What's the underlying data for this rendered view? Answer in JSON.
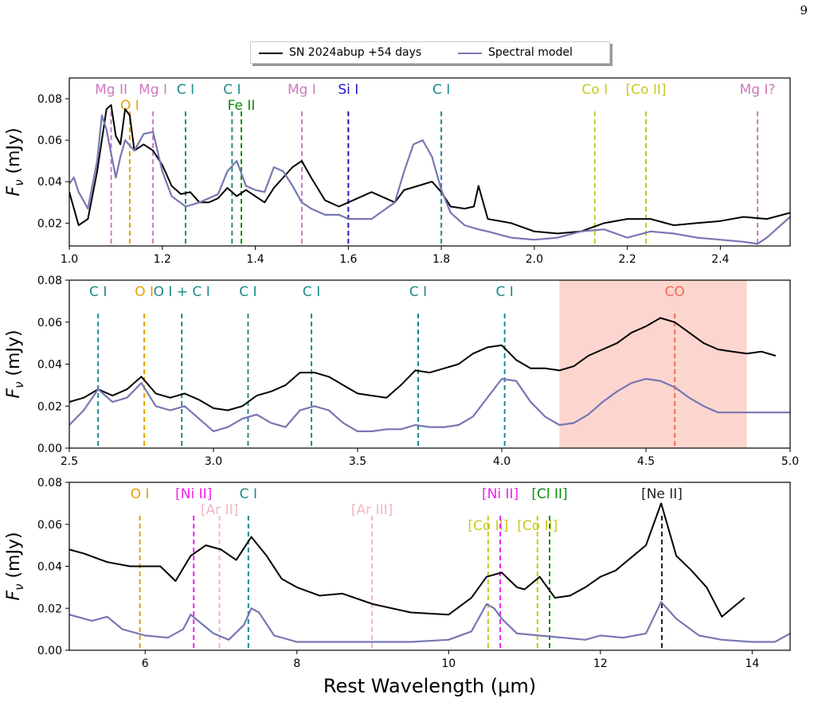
{
  "page_number": "9",
  "legend": {
    "observed_label": "SN 2024abup +54 days",
    "model_label": "Spectral model",
    "observed_color": "#000000",
    "model_color": "#7777b3"
  },
  "chart_data": [
    {
      "type": "line",
      "panel": "top",
      "ylabel": "F_ν (mJy)",
      "xlabel": "",
      "xlim": [
        1.0,
        2.55
      ],
      "ylim": [
        0.009,
        0.09
      ],
      "xticks": [
        1.0,
        1.2,
        1.4,
        1.6,
        1.8,
        2.0,
        2.2,
        2.4
      ],
      "xtick_labels": [
        "1.0",
        "1.2",
        "1.4",
        "1.6",
        "1.8",
        "2.0",
        "2.2",
        "2.4"
      ],
      "yticks": [
        0.02,
        0.04,
        0.06,
        0.08
      ],
      "ytick_labels": [
        "0.02",
        "0.04",
        "0.06",
        "0.08"
      ],
      "series": [
        {
          "name": "SN 2024abup +54 days",
          "color": "#000000",
          "x": [
            1.0,
            1.02,
            1.04,
            1.06,
            1.08,
            1.09,
            1.1,
            1.11,
            1.12,
            1.13,
            1.14,
            1.16,
            1.18,
            1.2,
            1.22,
            1.24,
            1.26,
            1.28,
            1.3,
            1.32,
            1.34,
            1.36,
            1.38,
            1.4,
            1.42,
            1.44,
            1.46,
            1.48,
            1.5,
            1.52,
            1.55,
            1.58,
            1.6,
            1.62,
            1.65,
            1.68,
            1.7,
            1.72,
            1.75,
            1.78,
            1.8,
            1.82,
            1.85,
            1.87,
            1.88,
            1.9,
            1.95,
            2.0,
            2.05,
            2.1,
            2.15,
            2.2,
            2.25,
            2.3,
            2.35,
            2.4,
            2.45,
            2.5,
            2.55
          ],
          "y": [
            0.035,
            0.019,
            0.022,
            0.045,
            0.075,
            0.077,
            0.062,
            0.058,
            0.075,
            0.072,
            0.055,
            0.058,
            0.055,
            0.048,
            0.038,
            0.034,
            0.035,
            0.03,
            0.03,
            0.032,
            0.037,
            0.033,
            0.036,
            0.033,
            0.03,
            0.037,
            0.042,
            0.047,
            0.05,
            0.042,
            0.031,
            0.028,
            0.03,
            0.032,
            0.035,
            0.032,
            0.03,
            0.036,
            0.038,
            0.04,
            0.035,
            0.028,
            0.027,
            0.028,
            0.038,
            0.022,
            0.02,
            0.016,
            0.015,
            0.016,
            0.02,
            0.022,
            0.022,
            0.019,
            0.02,
            0.021,
            0.023,
            0.022,
            0.025
          ]
        },
        {
          "name": "Spectral model",
          "color": "#7777b3",
          "x": [
            1.0,
            1.01,
            1.02,
            1.04,
            1.06,
            1.07,
            1.08,
            1.1,
            1.11,
            1.12,
            1.14,
            1.16,
            1.18,
            1.2,
            1.22,
            1.25,
            1.28,
            1.3,
            1.32,
            1.34,
            1.36,
            1.38,
            1.4,
            1.42,
            1.44,
            1.46,
            1.48,
            1.5,
            1.52,
            1.55,
            1.58,
            1.6,
            1.65,
            1.7,
            1.72,
            1.74,
            1.76,
            1.78,
            1.8,
            1.82,
            1.85,
            1.88,
            1.9,
            1.95,
            2.0,
            2.05,
            2.1,
            2.15,
            2.2,
            2.25,
            2.3,
            2.35,
            2.4,
            2.45,
            2.48,
            2.5,
            2.55
          ],
          "y": [
            0.039,
            0.042,
            0.035,
            0.027,
            0.05,
            0.072,
            0.065,
            0.042,
            0.052,
            0.06,
            0.055,
            0.063,
            0.064,
            0.045,
            0.033,
            0.028,
            0.03,
            0.032,
            0.034,
            0.045,
            0.05,
            0.038,
            0.036,
            0.035,
            0.047,
            0.045,
            0.038,
            0.03,
            0.027,
            0.024,
            0.024,
            0.022,
            0.022,
            0.03,
            0.045,
            0.058,
            0.06,
            0.052,
            0.036,
            0.025,
            0.019,
            0.017,
            0.016,
            0.013,
            0.012,
            0.013,
            0.016,
            0.017,
            0.013,
            0.016,
            0.015,
            0.013,
            0.012,
            0.011,
            0.01,
            0.013,
            0.023
          ]
        }
      ],
      "lines": [
        {
          "x": 1.09,
          "label": "Mg II",
          "color": "#cc79c0",
          "row": 1
        },
        {
          "x": 1.13,
          "label": "O I",
          "color": "#e69f00",
          "row": 2
        },
        {
          "x": 1.18,
          "label": "Mg I",
          "color": "#cc79c0",
          "row": 1
        },
        {
          "x": 1.25,
          "label": "C I",
          "color": "#1b8a8a",
          "row": 1
        },
        {
          "x": 1.35,
          "label": "C I",
          "color": "#1b8a8a",
          "row": 1
        },
        {
          "x": 1.37,
          "label": "Fe II",
          "color": "#0b8a0b",
          "row": 2
        },
        {
          "x": 1.5,
          "label": "Mg I",
          "color": "#cc79c0",
          "row": 1
        },
        {
          "x": 1.6,
          "label": "Si I",
          "color": "#1a1acc",
          "row": 1
        },
        {
          "x": 1.8,
          "label": "C I",
          "color": "#1b8a8a",
          "row": 1
        },
        {
          "x": 2.13,
          "label": "Co I",
          "color": "#c8c81e",
          "row": 1
        },
        {
          "x": 2.24,
          "label": "[Co II]",
          "color": "#c8c81e",
          "row": 1
        },
        {
          "x": 2.48,
          "label": "Mg I?",
          "color": "#cc79c0",
          "row": 1
        }
      ]
    },
    {
      "type": "line",
      "panel": "middle",
      "ylabel": "F_ν (mJy)",
      "xlabel": "",
      "xlim": [
        2.5,
        5.0
      ],
      "ylim": [
        0.0,
        0.08
      ],
      "xticks": [
        2.5,
        3.0,
        3.5,
        4.0,
        4.5,
        5.0
      ],
      "xtick_labels": [
        "2.5",
        "3.0",
        "3.5",
        "4.0",
        "4.5",
        "5.0"
      ],
      "yticks": [
        0.0,
        0.02,
        0.04,
        0.06,
        0.08
      ],
      "ytick_labels": [
        "0.00",
        "0.02",
        "0.04",
        "0.06",
        "0.08"
      ],
      "shaded_region": {
        "x0": 4.2,
        "x1": 4.85,
        "color": "#fdd5cf"
      },
      "series": [
        {
          "name": "SN 2024abup +54 days",
          "color": "#000000",
          "x": [
            2.5,
            2.55,
            2.6,
            2.65,
            2.7,
            2.75,
            2.8,
            2.85,
            2.9,
            2.95,
            3.0,
            3.05,
            3.1,
            3.15,
            3.2,
            3.25,
            3.3,
            3.35,
            3.4,
            3.45,
            3.5,
            3.55,
            3.6,
            3.65,
            3.7,
            3.75,
            3.8,
            3.85,
            3.9,
            3.95,
            4.0,
            4.05,
            4.1,
            4.15,
            4.2,
            4.25,
            4.3,
            4.35,
            4.4,
            4.45,
            4.5,
            4.55,
            4.6,
            4.65,
            4.7,
            4.75,
            4.8,
            4.85,
            4.9,
            4.95
          ],
          "y": [
            0.022,
            0.024,
            0.028,
            0.025,
            0.028,
            0.034,
            0.026,
            0.024,
            0.026,
            0.023,
            0.019,
            0.018,
            0.02,
            0.025,
            0.027,
            0.03,
            0.036,
            0.036,
            0.034,
            0.03,
            0.026,
            0.025,
            0.024,
            0.03,
            0.037,
            0.036,
            0.038,
            0.04,
            0.045,
            0.048,
            0.049,
            0.042,
            0.038,
            0.038,
            0.037,
            0.039,
            0.044,
            0.047,
            0.05,
            0.055,
            0.058,
            0.062,
            0.06,
            0.055,
            0.05,
            0.047,
            0.046,
            0.045,
            0.046,
            0.044
          ]
        },
        {
          "name": "Spectral model",
          "color": "#7777b3",
          "x": [
            2.5,
            2.55,
            2.6,
            2.65,
            2.7,
            2.75,
            2.8,
            2.85,
            2.9,
            2.95,
            3.0,
            3.05,
            3.1,
            3.15,
            3.2,
            3.25,
            3.3,
            3.35,
            3.4,
            3.45,
            3.5,
            3.55,
            3.6,
            3.65,
            3.7,
            3.75,
            3.8,
            3.85,
            3.9,
            3.95,
            4.0,
            4.05,
            4.1,
            4.15,
            4.2,
            4.25,
            4.3,
            4.35,
            4.4,
            4.45,
            4.5,
            4.55,
            4.6,
            4.65,
            4.7,
            4.75,
            4.8,
            4.85,
            4.9,
            4.95,
            5.0
          ],
          "y": [
            0.011,
            0.018,
            0.028,
            0.022,
            0.024,
            0.031,
            0.02,
            0.018,
            0.02,
            0.014,
            0.008,
            0.01,
            0.014,
            0.016,
            0.012,
            0.01,
            0.018,
            0.02,
            0.018,
            0.012,
            0.008,
            0.008,
            0.009,
            0.009,
            0.011,
            0.01,
            0.01,
            0.011,
            0.015,
            0.024,
            0.033,
            0.032,
            0.022,
            0.015,
            0.011,
            0.012,
            0.016,
            0.022,
            0.027,
            0.031,
            0.033,
            0.032,
            0.029,
            0.024,
            0.02,
            0.017,
            0.017,
            0.017,
            0.017,
            0.017,
            0.017
          ]
        }
      ],
      "lines": [
        {
          "x": 2.6,
          "label": "C I",
          "color": "#1b8a8a",
          "row": 1
        },
        {
          "x": 2.76,
          "label": "O I",
          "color": "#e69f00",
          "row": 1
        },
        {
          "x": 2.89,
          "label": "O I + C I",
          "color": "#1b8a8a",
          "row": 1
        },
        {
          "x": 3.12,
          "label": "C I",
          "color": "#1b8a8a",
          "row": 1
        },
        {
          "x": 3.34,
          "label": "C I",
          "color": "#1b8a8a",
          "row": 1
        },
        {
          "x": 3.71,
          "label": "C I",
          "color": "#1b8a8a",
          "row": 1
        },
        {
          "x": 4.01,
          "label": "C I",
          "color": "#1b8a8a",
          "row": 1
        },
        {
          "x": 4.6,
          "label": "CO",
          "color": "#f26a50",
          "row": 1
        }
      ]
    },
    {
      "type": "line",
      "panel": "bottom",
      "ylabel": "F_ν (mJy)",
      "xlabel": "Rest Wavelength (μm)",
      "xlim": [
        5.0,
        14.5
      ],
      "ylim": [
        0.0,
        0.08
      ],
      "xticks": [
        6,
        8,
        10,
        12,
        14
      ],
      "xtick_labels": [
        "6",
        "8",
        "10",
        "12",
        "14"
      ],
      "yticks": [
        0.0,
        0.02,
        0.04,
        0.06,
        0.08
      ],
      "ytick_labels": [
        "0.00",
        "0.02",
        "0.04",
        "0.06",
        "0.08"
      ],
      "series": [
        {
          "name": "SN 2024abup +54 days",
          "color": "#000000",
          "x": [
            5.0,
            5.2,
            5.5,
            5.8,
            6.0,
            6.2,
            6.4,
            6.6,
            6.8,
            7.0,
            7.2,
            7.4,
            7.6,
            7.8,
            8.0,
            8.3,
            8.6,
            9.0,
            9.5,
            10.0,
            10.3,
            10.5,
            10.7,
            10.9,
            11.0,
            11.2,
            11.4,
            11.6,
            11.8,
            12.0,
            12.2,
            12.4,
            12.6,
            12.8,
            13.0,
            13.2,
            13.4,
            13.6,
            13.8,
            13.9
          ],
          "y": [
            0.048,
            0.046,
            0.042,
            0.04,
            0.04,
            0.04,
            0.033,
            0.045,
            0.05,
            0.048,
            0.043,
            0.054,
            0.045,
            0.034,
            0.03,
            0.026,
            0.027,
            0.022,
            0.018,
            0.017,
            0.025,
            0.035,
            0.037,
            0.03,
            0.029,
            0.035,
            0.025,
            0.026,
            0.03,
            0.035,
            0.038,
            0.044,
            0.05,
            0.07,
            0.045,
            0.038,
            0.03,
            0.016,
            0.022,
            0.025
          ]
        },
        {
          "name": "Spectral model",
          "color": "#7777b3",
          "x": [
            5.0,
            5.3,
            5.5,
            5.7,
            6.0,
            6.3,
            6.5,
            6.6,
            6.7,
            6.9,
            7.1,
            7.3,
            7.4,
            7.5,
            7.7,
            8.0,
            8.5,
            9.0,
            9.5,
            10.0,
            10.3,
            10.5,
            10.6,
            10.7,
            10.9,
            11.2,
            11.5,
            11.8,
            12.0,
            12.3,
            12.6,
            12.8,
            13.0,
            13.3,
            13.6,
            14.0,
            14.3,
            14.5
          ],
          "y": [
            0.017,
            0.014,
            0.016,
            0.01,
            0.007,
            0.006,
            0.01,
            0.017,
            0.014,
            0.008,
            0.005,
            0.012,
            0.02,
            0.018,
            0.007,
            0.004,
            0.004,
            0.004,
            0.004,
            0.005,
            0.009,
            0.022,
            0.02,
            0.015,
            0.008,
            0.007,
            0.006,
            0.005,
            0.007,
            0.006,
            0.008,
            0.023,
            0.015,
            0.007,
            0.005,
            0.004,
            0.004,
            0.008
          ]
        }
      ],
      "lines": [
        {
          "x": 5.93,
          "label": "O I",
          "color": "#e69f00",
          "row": 1
        },
        {
          "x": 6.64,
          "label": "[Ni II]",
          "color": "#ee22ee",
          "row": 1
        },
        {
          "x": 6.98,
          "label": "[Ar II]",
          "color": "#f4b6c2",
          "row": 2
        },
        {
          "x": 7.36,
          "label": "C I",
          "color": "#1b8a8a",
          "row": 1
        },
        {
          "x": 8.99,
          "label": "[Ar III]",
          "color": "#f4b6c2",
          "row": 2
        },
        {
          "x": 10.52,
          "label": "[Co II]",
          "color": "#c8c81e",
          "row": 3
        },
        {
          "x": 10.68,
          "label": "[Ni II]",
          "color": "#ee22ee",
          "row": 1
        },
        {
          "x": 11.17,
          "label": "[Co II]",
          "color": "#c8c81e",
          "row": 3
        },
        {
          "x": 11.33,
          "label": "[Cl II]",
          "color": "#0b8a0b",
          "row": 1
        },
        {
          "x": 12.81,
          "label": "[Ne II]",
          "color": "#222222",
          "row": 1
        }
      ]
    }
  ]
}
